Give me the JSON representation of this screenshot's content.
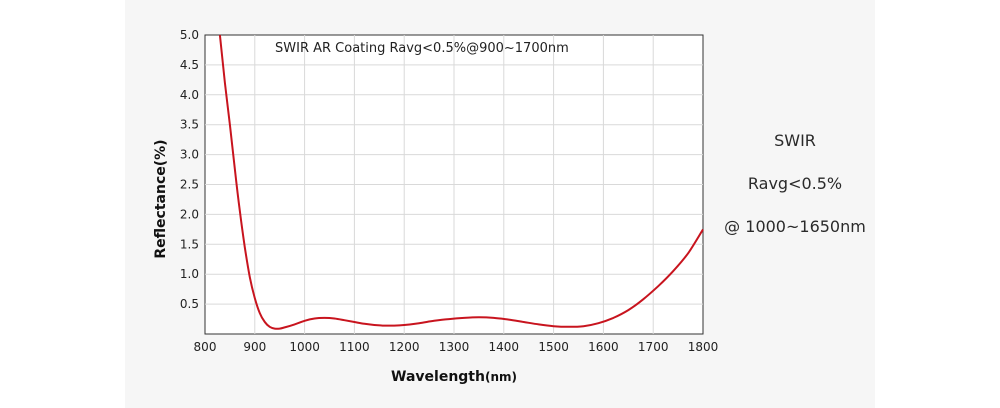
{
  "chart_data": {
    "type": "line",
    "title": "SWIR AR Coating Ravg<0.5%@900~1700nm",
    "xlabel": "Wavelength",
    "xlabel_unit": "(nm)",
    "ylabel": "Reflectance(%)",
    "xlim": [
      800,
      1800
    ],
    "ylim": [
      0,
      5.0
    ],
    "x_ticks": [
      "800",
      "900",
      "1000",
      "1100",
      "1200",
      "1300",
      "1400",
      "1500",
      "1600",
      "1700",
      "1800"
    ],
    "y_ticks": [
      "0.5",
      "1.0",
      "1.5",
      "2.0",
      "2.5",
      "3.0",
      "3.5",
      "4.0",
      "4.5",
      "5.0"
    ],
    "grid": true,
    "series": [
      {
        "color": "#c8141e",
        "x": [
          830,
          840,
          850,
          860,
          870,
          880,
          890,
          900,
          910,
          920,
          930,
          940,
          950,
          960,
          980,
          1000,
          1020,
          1040,
          1060,
          1080,
          1100,
          1120,
          1140,
          1160,
          1180,
          1200,
          1230,
          1260,
          1290,
          1320,
          1350,
          1380,
          1410,
          1440,
          1470,
          1500,
          1530,
          1560,
          1590,
          1620,
          1650,
          1680,
          1710,
          1740,
          1770,
          1800
        ],
        "y": [
          5.0,
          4.2,
          3.5,
          2.75,
          2.05,
          1.45,
          0.95,
          0.6,
          0.35,
          0.2,
          0.12,
          0.09,
          0.09,
          0.11,
          0.16,
          0.22,
          0.26,
          0.27,
          0.26,
          0.23,
          0.2,
          0.17,
          0.15,
          0.14,
          0.14,
          0.15,
          0.18,
          0.22,
          0.25,
          0.27,
          0.28,
          0.27,
          0.24,
          0.2,
          0.16,
          0.13,
          0.12,
          0.13,
          0.18,
          0.27,
          0.4,
          0.58,
          0.8,
          1.05,
          1.35,
          1.75
        ]
      }
    ]
  },
  "side_note": {
    "line1": "SWIR",
    "line2": "Ravg<0.5%",
    "line3": "@ 1000~1650nm"
  }
}
